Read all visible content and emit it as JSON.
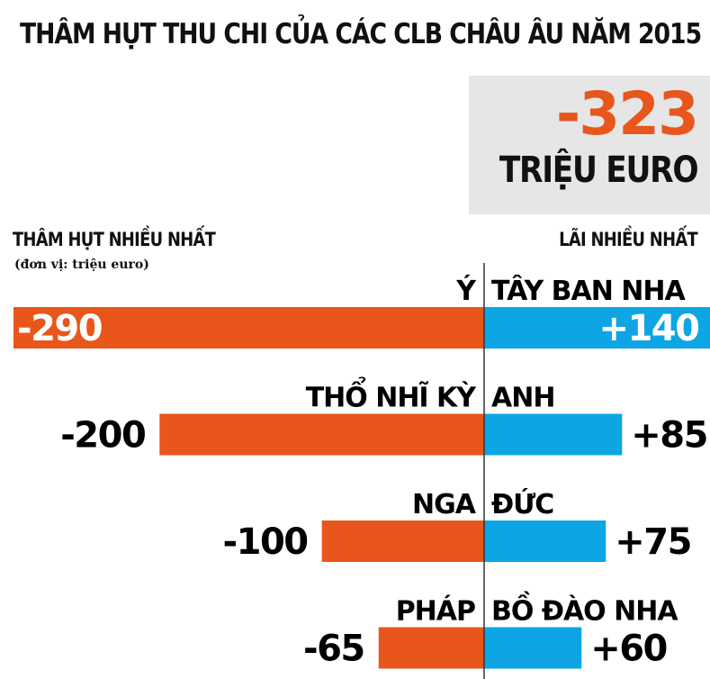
{
  "header": {
    "title": "THÂM HỤT THU CHI CỦA CÁC CLB CHÂU ÂU NĂM 2015"
  },
  "total": {
    "value": "-323",
    "unit": "TRIỆU EURO"
  },
  "labels": {
    "left": "THÂM HỤT NHIỀU NHẤT",
    "right": "LÃI NHIỀU NHẤT",
    "unit_note": "(đơn vị: triệu euro)"
  },
  "colors": {
    "deficit": "#e8561b",
    "profit": "#0ea5e5",
    "total_value": "#e8561b",
    "total_box": "#e6e6e6",
    "axis": "#333333"
  },
  "chart_data": {
    "type": "bar",
    "orientation": "horizontal-diverging",
    "scale_max": 290,
    "series": [
      {
        "name": "THÂM HỤT NHIỀU NHẤT",
        "categories": [
          "Ý",
          "THỔ NHĨ KỲ",
          "NGA",
          "PHÁP"
        ],
        "values": [
          -290,
          -200,
          -100,
          -65
        ],
        "value_labels": [
          "-290",
          "-200",
          "-100",
          "-65"
        ]
      },
      {
        "name": "LÃI NHIỀU NHẤT",
        "categories": [
          "TÂY BAN NHA",
          "ANH",
          "ĐỨC",
          "BỒ ĐÀO NHA"
        ],
        "values": [
          140,
          85,
          75,
          60
        ],
        "value_labels": [
          "+140",
          "+85",
          "+75",
          "+60"
        ]
      }
    ]
  }
}
